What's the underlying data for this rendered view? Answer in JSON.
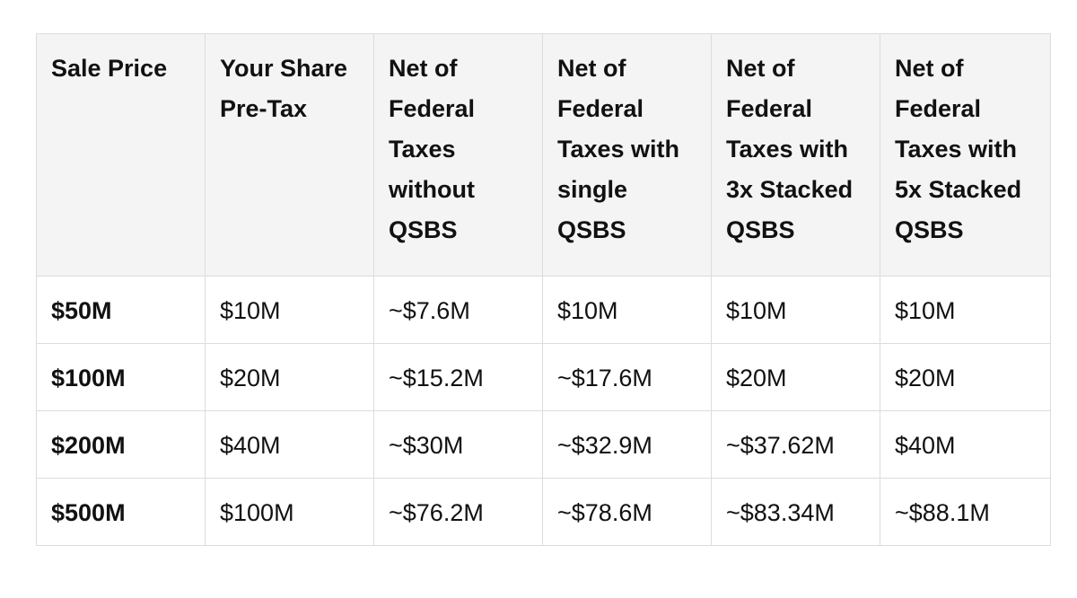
{
  "table": {
    "headers": [
      "Sale Price",
      "Your Share Pre-Tax",
      "Net of Federal Taxes without QSBS",
      "Net of Federal Taxes with single QSBS",
      "Net of Federal Taxes with 3x Stacked QSBS",
      "Net of Federal Taxes with 5x Stacked QSBS"
    ],
    "rows": [
      [
        "$50M",
        "$10M",
        "~$7.6M",
        "$10M",
        "$10M",
        "$10M"
      ],
      [
        "$100M",
        "$20M",
        "~$15.2M",
        "~$17.6M",
        "$20M",
        "$20M"
      ],
      [
        "$200M",
        "$40M",
        "~$30M",
        "~$32.9M",
        "~$37.62M",
        "$40M"
      ],
      [
        "$500M",
        "$100M",
        "~$76.2M",
        "~$78.6M",
        "~$83.34M",
        "~$88.1M"
      ]
    ]
  }
}
